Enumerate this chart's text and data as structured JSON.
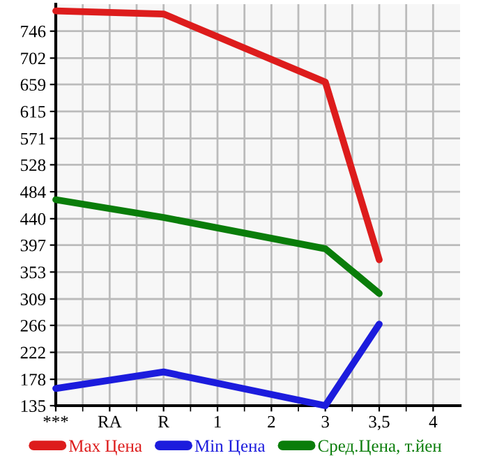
{
  "chart_data": {
    "type": "line",
    "categories": [
      "***",
      "RA",
      "R",
      "1",
      "2",
      "3",
      "3,5",
      "4"
    ],
    "series": [
      {
        "name": "Max Цена",
        "color": "#dd1c1c",
        "values": [
          779,
          null,
          774,
          null,
          null,
          663,
          373,
          null
        ]
      },
      {
        "name": "Min Цена",
        "color": "#1c1cdd",
        "values": [
          163,
          null,
          190,
          null,
          null,
          135,
          268,
          null
        ]
      },
      {
        "name": "Сред.Цена, т.йен",
        "color": "#0a7d0a",
        "values": [
          471,
          null,
          442,
          null,
          null,
          391,
          318,
          null
        ]
      }
    ],
    "ylim": [
      135,
      790
    ],
    "yticks": [
      135,
      178,
      222,
      266,
      309,
      353,
      397,
      440,
      484,
      528,
      571,
      615,
      659,
      702,
      746
    ],
    "grid": true,
    "legend": "bottom",
    "marker": "none",
    "line_style": "solid"
  }
}
